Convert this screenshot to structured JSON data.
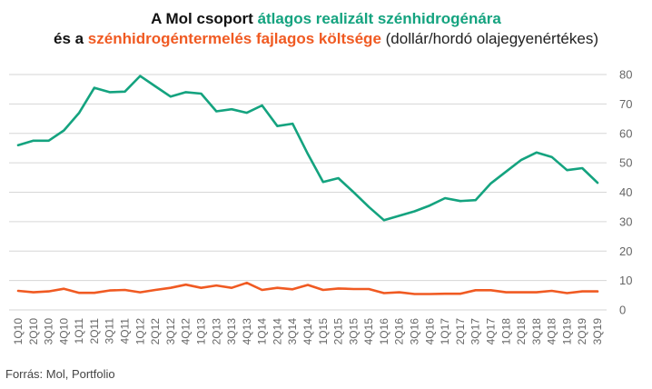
{
  "title": {
    "line1_prefix": "A Mol csoport ",
    "line1_highlight": "átlagos realizált szénhidrogénára",
    "line2_prefix": "és a ",
    "line2_highlight": "szénhidrogéntermelés fajlagos költsége",
    "line2_suffix": " (dollár/hordó olajegyenértékes)"
  },
  "source": "Forrás: Mol, Portfolio",
  "colors": {
    "green": "#14a37f",
    "orange": "#f05a22",
    "grid": "#d6d6d6",
    "axis_text": "#666666"
  },
  "chart_data": {
    "type": "line",
    "ylim": [
      0,
      80
    ],
    "yticks": [
      "0",
      "10",
      "20",
      "30",
      "40",
      "50",
      "60",
      "70",
      "80"
    ],
    "grid": true,
    "categories": [
      "1Q10",
      "2Q10",
      "3Q10",
      "4Q10",
      "1Q11",
      "2Q11",
      "3Q11",
      "4Q11",
      "1Q12",
      "2Q12",
      "3Q12",
      "4Q12",
      "1Q13",
      "2Q13",
      "3Q13",
      "4Q13",
      "1Q14",
      "2Q14",
      "3Q14",
      "4Q14",
      "1Q15",
      "2Q15",
      "3Q15",
      "4Q15",
      "1Q16",
      "2Q16",
      "3Q16",
      "4Q16",
      "1Q17",
      "2Q17",
      "3Q17",
      "4Q17",
      "1Q18",
      "2Q18",
      "3Q18",
      "4Q18",
      "1Q19",
      "2Q19",
      "3Q19"
    ],
    "series": [
      {
        "color": "#14a37f",
        "values": [
          56,
          57.5,
          57.5,
          61,
          67,
          75.5,
          74,
          74.2,
          79.5,
          76,
          72.5,
          74,
          73.5,
          67.5,
          68.2,
          67,
          69.5,
          62.5,
          63.3,
          53,
          43.5,
          44.8,
          40,
          35,
          30.5,
          32,
          33.5,
          35.5,
          38,
          37,
          37.3,
          43,
          47,
          51,
          53.5,
          52,
          47.5,
          48.2,
          43.2
        ]
      },
      {
        "color": "#f05a22",
        "values": [
          6.5,
          6,
          6.3,
          7.2,
          5.8,
          5.8,
          6.6,
          6.8,
          6,
          6.8,
          7.5,
          8.6,
          7.5,
          8.3,
          7.5,
          9.2,
          6.8,
          7.5,
          7,
          8.5,
          6.8,
          7.3,
          7.1,
          7.1,
          5.7,
          6,
          5.4,
          5.4,
          5.5,
          5.5,
          6.7,
          6.7,
          6,
          6,
          6,
          6.5,
          5.7,
          6.3,
          6.3
        ]
      }
    ]
  }
}
